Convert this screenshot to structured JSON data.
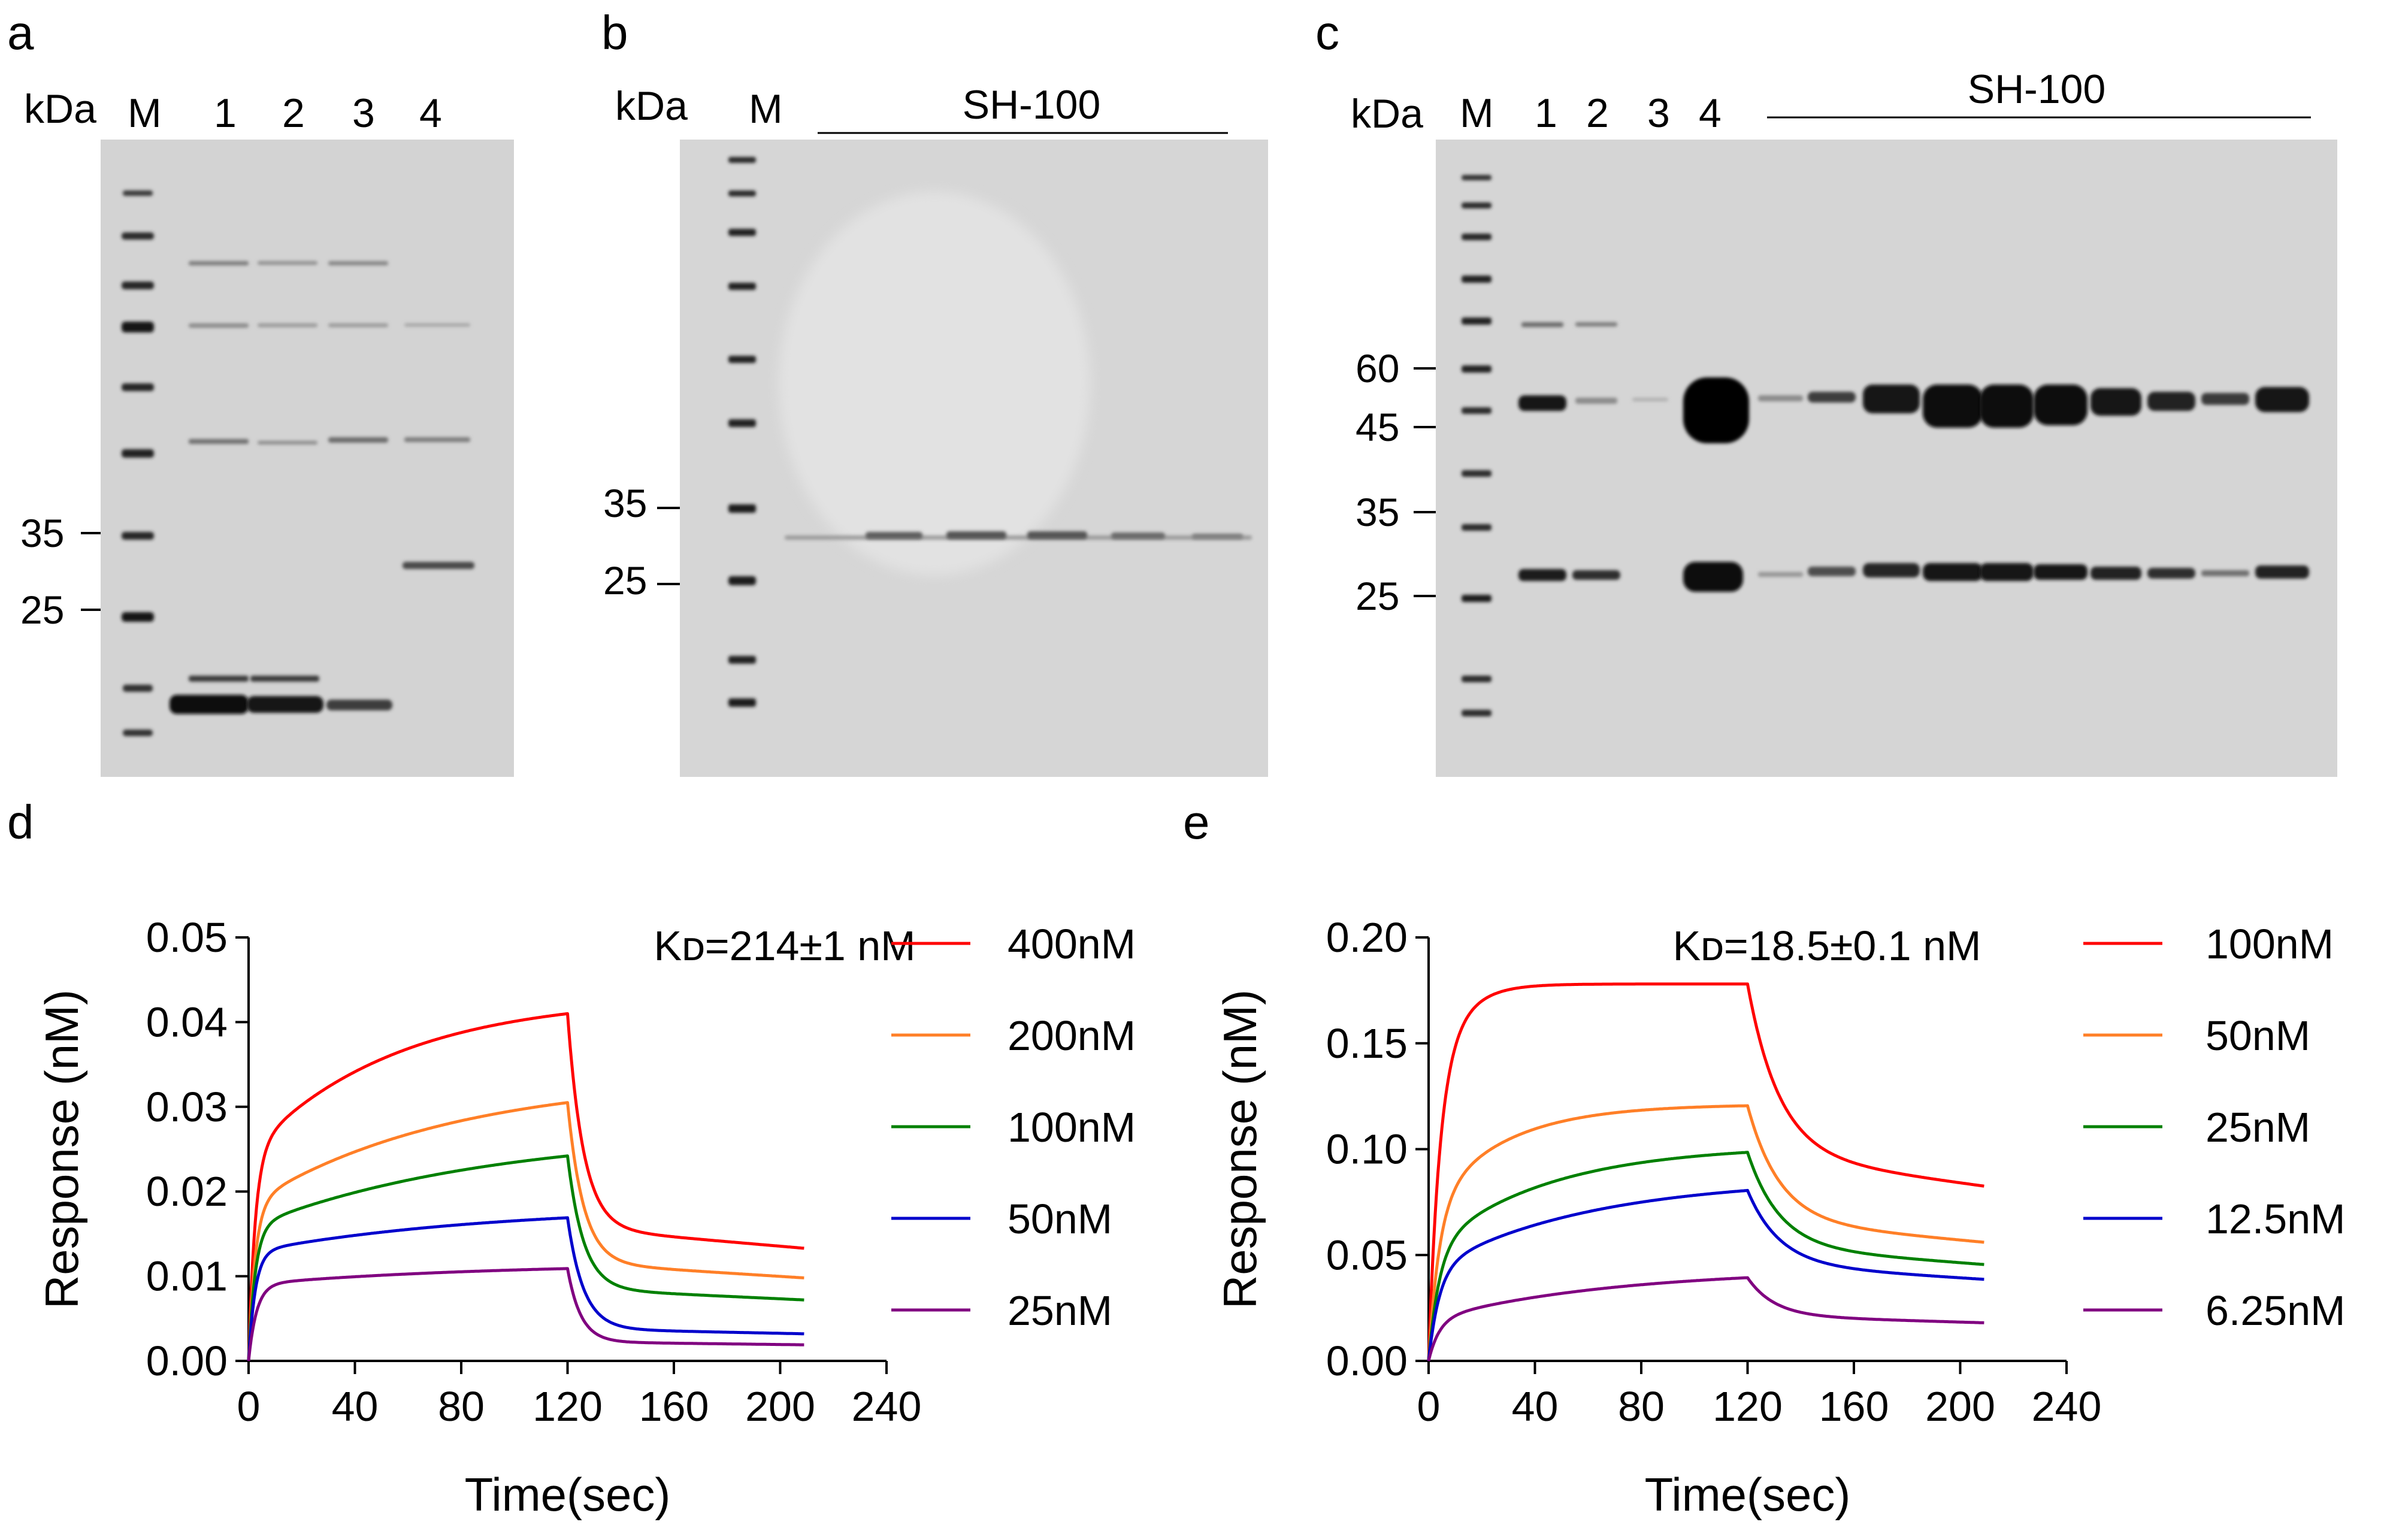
{
  "panels": [
    {
      "letter": "a",
      "unit": "kDa",
      "marker": "M",
      "lanes": [
        "1",
        "2",
        "3",
        "4"
      ],
      "group_label": "",
      "markers": [
        "35",
        "25"
      ]
    },
    {
      "letter": "b",
      "unit": "kDa",
      "marker": "M",
      "lanes": [],
      "group_label": "SH-100",
      "markers": [
        "35",
        "25"
      ]
    },
    {
      "letter": "c",
      "unit": "kDa",
      "marker": "M",
      "lanes": [
        "1",
        "2",
        "3",
        "4"
      ],
      "group_label": "SH-100",
      "markers": [
        "60",
        "45",
        "35",
        "25"
      ]
    }
  ],
  "gel_colors": {
    "background": "#d3d3d3",
    "band": "#101010"
  },
  "chart_data": [
    {
      "letter": "d",
      "type": "line",
      "title": "",
      "xlabel": "Time(sec)",
      "ylabel": "Response (nM)",
      "xlim": [
        0,
        240
      ],
      "ylim": [
        0,
        0.05
      ],
      "xticks": [
        "0",
        "40",
        "80",
        "120",
        "160",
        "200",
        "240"
      ],
      "yticks": [
        "0.00",
        "0.01",
        "0.02",
        "0.03",
        "0.04",
        "0.05"
      ],
      "annotation": "Kᴅ=214±1 nM",
      "association_end": 120,
      "x_end": 209,
      "legend_position": "right",
      "series": [
        {
          "name": "400nM",
          "color": "#ff0000",
          "plateau": 0.041,
          "fast_fraction": 0.57,
          "fast_tau": 2.5,
          "slow_tau": 55,
          "final": 0.0133,
          "diss_tau": 6
        },
        {
          "name": "200nM",
          "color": "#ff7f27",
          "plateau": 0.0305,
          "fast_fraction": 0.55,
          "fast_tau": 2.5,
          "slow_tau": 75,
          "final": 0.0098,
          "diss_tau": 6
        },
        {
          "name": "100nM",
          "color": "#008000",
          "plateau": 0.0242,
          "fast_fraction": 0.58,
          "fast_tau": 2.5,
          "slow_tau": 90,
          "final": 0.0072,
          "diss_tau": 6
        },
        {
          "name": "50nM",
          "color": "#0000cc",
          "plateau": 0.0169,
          "fast_fraction": 0.7,
          "fast_tau": 2.5,
          "slow_tau": 90,
          "final": 0.0032,
          "diss_tau": 6
        },
        {
          "name": "25nM",
          "color": "#800080",
          "plateau": 0.0109,
          "fast_fraction": 0.78,
          "fast_tau": 3,
          "slow_tau": 90,
          "final": 0.0019,
          "diss_tau": 5
        }
      ]
    },
    {
      "letter": "e",
      "type": "line",
      "title": "",
      "xlabel": "Time(sec)",
      "ylabel": "Response (nM)",
      "xlim": [
        0,
        240
      ],
      "ylim": [
        0,
        0.2
      ],
      "xticks": [
        "0",
        "40",
        "80",
        "120",
        "160",
        "200",
        "240"
      ],
      "yticks": [
        "0.00",
        "0.05",
        "0.10",
        "0.15",
        "0.20"
      ],
      "annotation": "Kᴅ=18.5±0.1 nM",
      "association_end": 120,
      "x_end": 209,
      "legend_position": "right",
      "series": [
        {
          "name": "100nM",
          "color": "#ff0000",
          "plateau": 0.178,
          "fast_fraction": 0.7,
          "fast_tau": 4,
          "slow_tau": 10,
          "final": 0.0825,
          "diss_tau": 12
        },
        {
          "name": "50nM",
          "color": "#ff7f27",
          "plateau": 0.1205,
          "fast_fraction": 0.6,
          "fast_tau": 4,
          "slow_tau": 28,
          "final": 0.056,
          "diss_tau": 12
        },
        {
          "name": "25nM",
          "color": "#008000",
          "plateau": 0.0985,
          "fast_fraction": 0.52,
          "fast_tau": 4,
          "slow_tau": 45,
          "final": 0.0455,
          "diss_tau": 12
        },
        {
          "name": "12.5nM",
          "color": "#0000cc",
          "plateau": 0.0805,
          "fast_fraction": 0.5,
          "fast_tau": 4,
          "slow_tau": 60,
          "final": 0.0385,
          "diss_tau": 12
        },
        {
          "name": "6.25nM",
          "color": "#800080",
          "plateau": 0.0393,
          "fast_fraction": 0.45,
          "fast_tau": 4,
          "slow_tau": 70,
          "final": 0.018,
          "diss_tau": 10
        }
      ]
    }
  ]
}
